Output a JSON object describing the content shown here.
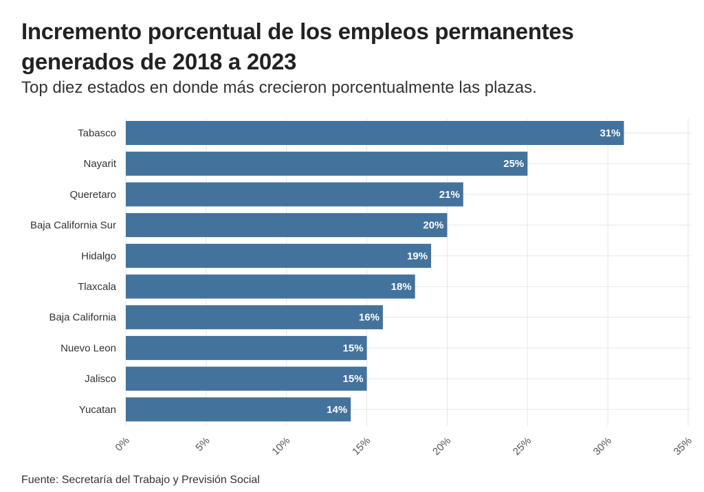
{
  "header": {
    "title": "Incremento porcentual de los empleos permanentes generados de 2018 a 2023",
    "subtitle": "Top diez estados en donde más crecieron porcentualmente las plazas."
  },
  "footer": {
    "source": "Fuente: Secretaría del Trabajo y Previsión Social"
  },
  "colors": {
    "bar": "#43739c",
    "grid": "#e6e6e6"
  },
  "chart_data": {
    "type": "bar",
    "orientation": "horizontal",
    "categories": [
      "Tabasco",
      "Nayarit",
      "Queretaro",
      "Baja California Sur",
      "Hidalgo",
      "Tlaxcala",
      "Baja California",
      "Nuevo Leon",
      "Jalisco",
      "Yucatan"
    ],
    "values": [
      31,
      25,
      21,
      20,
      19,
      18,
      16,
      15,
      15,
      14
    ],
    "value_labels": [
      "31%",
      "25%",
      "21%",
      "20%",
      "19%",
      "18%",
      "16%",
      "15%",
      "15%",
      "14%"
    ],
    "title": "Incremento porcentual de los empleos permanentes generados de 2018 a 2023",
    "subtitle": "Top diez estados en donde más crecieron porcentualmente las plazas.",
    "xlim": [
      0,
      35
    ],
    "x_ticks": [
      0,
      5,
      10,
      15,
      20,
      25,
      30,
      35
    ],
    "x_tick_labels": [
      "0%",
      "5%",
      "10%",
      "15%",
      "20%",
      "25%",
      "30%",
      "35%"
    ],
    "grid": true
  }
}
